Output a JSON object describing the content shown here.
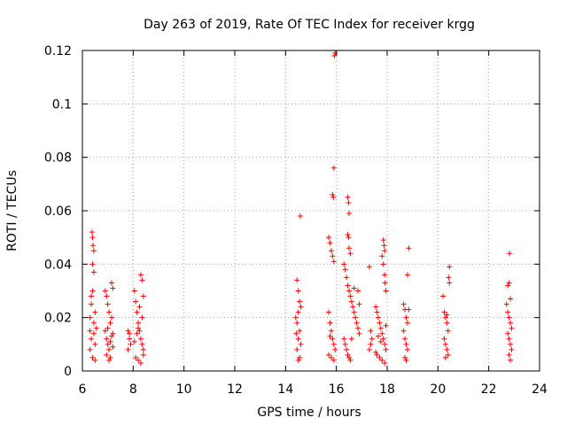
{
  "chart_data": {
    "type": "scatter",
    "title": "Day 263 of 2019, Rate Of TEC Index for receiver krgg",
    "xlabel": "GPS time / hours",
    "ylabel": "ROTI / TECUs",
    "xlim": [
      6,
      24
    ],
    "ylim": [
      0,
      0.12
    ],
    "xticks": [
      6,
      8,
      10,
      12,
      14,
      16,
      18,
      20,
      22,
      24
    ],
    "xtick_labels": [
      "6",
      "8",
      "10",
      "12",
      "14",
      "16",
      "18",
      "20",
      "22",
      "24"
    ],
    "yticks": [
      0,
      0.02,
      0.04,
      0.06,
      0.08,
      0.1,
      0.12
    ],
    "ytick_labels": [
      "0",
      "0.02",
      "0.04",
      "0.06",
      "0.08",
      "0.1",
      "0.12"
    ],
    "grid": true,
    "marker": "+",
    "series": [
      {
        "name": "ROTI",
        "color": "#ff0000",
        "points": [
          [
            6.3,
            0.008
          ],
          [
            6.35,
            0.012
          ],
          [
            6.4,
            0.005
          ],
          [
            6.45,
            0.014
          ],
          [
            6.5,
            0.01
          ],
          [
            6.3,
            0.02
          ],
          [
            6.35,
            0.025
          ],
          [
            6.4,
            0.03
          ],
          [
            6.45,
            0.018
          ],
          [
            6.5,
            0.022
          ],
          [
            6.38,
            0.052
          ],
          [
            6.4,
            0.05
          ],
          [
            6.42,
            0.047
          ],
          [
            6.45,
            0.045
          ],
          [
            6.4,
            0.04
          ],
          [
            6.45,
            0.037
          ],
          [
            6.35,
            0.028
          ],
          [
            6.55,
            0.016
          ],
          [
            6.3,
            0.015
          ],
          [
            6.5,
            0.004
          ],
          [
            6.9,
            0.03
          ],
          [
            6.95,
            0.028
          ],
          [
            7.0,
            0.025
          ],
          [
            7.05,
            0.022
          ],
          [
            7.1,
            0.018
          ],
          [
            7.15,
            0.033
          ],
          [
            7.2,
            0.031
          ],
          [
            6.9,
            0.015
          ],
          [
            6.95,
            0.012
          ],
          [
            7.0,
            0.01
          ],
          [
            7.05,
            0.008
          ],
          [
            7.1,
            0.005
          ],
          [
            7.15,
            0.02
          ],
          [
            7.2,
            0.014
          ],
          [
            7.0,
            0.016
          ],
          [
            7.1,
            0.011
          ],
          [
            6.95,
            0.006
          ],
          [
            7.2,
            0.009
          ],
          [
            7.05,
            0.004
          ],
          [
            7.15,
            0.013
          ],
          [
            7.8,
            0.015
          ],
          [
            7.85,
            0.012
          ],
          [
            7.9,
            0.01
          ],
          [
            7.8,
            0.008
          ],
          [
            7.85,
            0.014
          ],
          [
            8.05,
            0.03
          ],
          [
            8.1,
            0.026
          ],
          [
            8.15,
            0.022
          ],
          [
            8.2,
            0.018
          ],
          [
            8.25,
            0.015
          ],
          [
            8.3,
            0.012
          ],
          [
            8.35,
            0.01
          ],
          [
            8.4,
            0.008
          ],
          [
            8.1,
            0.005
          ],
          [
            8.2,
            0.004
          ],
          [
            8.3,
            0.036
          ],
          [
            8.35,
            0.034
          ],
          [
            8.4,
            0.028
          ],
          [
            8.25,
            0.024
          ],
          [
            8.15,
            0.014
          ],
          [
            8.05,
            0.011
          ],
          [
            8.35,
            0.02
          ],
          [
            8.4,
            0.006
          ],
          [
            8.2,
            0.016
          ],
          [
            8.3,
            0.003
          ],
          [
            14.45,
            0.034
          ],
          [
            14.5,
            0.03
          ],
          [
            14.55,
            0.026
          ],
          [
            14.5,
            0.022
          ],
          [
            14.45,
            0.018
          ],
          [
            14.55,
            0.015
          ],
          [
            14.5,
            0.012
          ],
          [
            14.45,
            0.008
          ],
          [
            14.55,
            0.005
          ],
          [
            14.5,
            0.004
          ],
          [
            14.58,
            0.058
          ],
          [
            14.6,
            0.024
          ],
          [
            14.4,
            0.02
          ],
          [
            14.6,
            0.01
          ],
          [
            14.42,
            0.014
          ],
          [
            15.7,
            0.05
          ],
          [
            15.75,
            0.048
          ],
          [
            15.8,
            0.045
          ],
          [
            15.85,
            0.043
          ],
          [
            15.9,
            0.041
          ],
          [
            15.7,
            0.022
          ],
          [
            15.75,
            0.018
          ],
          [
            15.8,
            0.015
          ],
          [
            15.85,
            0.012
          ],
          [
            15.9,
            0.01
          ],
          [
            15.95,
            0.008
          ],
          [
            15.7,
            0.006
          ],
          [
            15.8,
            0.005
          ],
          [
            15.9,
            0.004
          ],
          [
            15.85,
            0.066
          ],
          [
            15.88,
            0.065
          ],
          [
            15.9,
            0.076
          ],
          [
            15.92,
            0.118
          ],
          [
            15.95,
            0.119
          ],
          [
            15.75,
            0.013
          ],
          [
            16.3,
            0.04
          ],
          [
            16.35,
            0.038
          ],
          [
            16.4,
            0.035
          ],
          [
            16.45,
            0.032
          ],
          [
            16.5,
            0.03
          ],
          [
            16.55,
            0.028
          ],
          [
            16.6,
            0.026
          ],
          [
            16.65,
            0.024
          ],
          [
            16.7,
            0.022
          ],
          [
            16.75,
            0.02
          ],
          [
            16.8,
            0.018
          ],
          [
            16.85,
            0.016
          ],
          [
            16.9,
            0.014
          ],
          [
            16.3,
            0.012
          ],
          [
            16.35,
            0.01
          ],
          [
            16.4,
            0.008
          ],
          [
            16.45,
            0.006
          ],
          [
            16.5,
            0.005
          ],
          [
            16.55,
            0.004
          ],
          [
            16.6,
            0.012
          ],
          [
            16.45,
            0.065
          ],
          [
            16.48,
            0.063
          ],
          [
            16.5,
            0.059
          ],
          [
            16.45,
            0.051
          ],
          [
            16.48,
            0.05
          ],
          [
            16.5,
            0.046
          ],
          [
            16.55,
            0.044
          ],
          [
            16.7,
            0.031
          ],
          [
            16.85,
            0.03
          ],
          [
            16.9,
            0.025
          ],
          [
            17.3,
            0.039
          ],
          [
            17.35,
            0.015
          ],
          [
            17.4,
            0.012
          ],
          [
            17.35,
            0.01
          ],
          [
            17.3,
            0.008
          ],
          [
            17.55,
            0.024
          ],
          [
            17.6,
            0.022
          ],
          [
            17.65,
            0.02
          ],
          [
            17.7,
            0.018
          ],
          [
            17.75,
            0.016
          ],
          [
            17.8,
            0.014
          ],
          [
            17.85,
            0.012
          ],
          [
            17.9,
            0.01
          ],
          [
            17.95,
            0.008
          ],
          [
            17.6,
            0.006
          ],
          [
            17.7,
            0.005
          ],
          [
            17.8,
            0.004
          ],
          [
            17.9,
            0.003
          ],
          [
            17.85,
            0.049
          ],
          [
            17.88,
            0.047
          ],
          [
            17.9,
            0.045
          ],
          [
            17.8,
            0.043
          ],
          [
            17.85,
            0.04
          ],
          [
            17.9,
            0.036
          ],
          [
            17.92,
            0.033
          ],
          [
            17.95,
            0.03
          ],
          [
            17.75,
            0.011
          ],
          [
            17.65,
            0.013
          ],
          [
            17.55,
            0.007
          ],
          [
            17.95,
            0.017
          ],
          [
            18.65,
            0.025
          ],
          [
            18.7,
            0.023
          ],
          [
            18.75,
            0.02
          ],
          [
            18.8,
            0.018
          ],
          [
            18.65,
            0.015
          ],
          [
            18.7,
            0.012
          ],
          [
            18.75,
            0.01
          ],
          [
            18.8,
            0.008
          ],
          [
            18.7,
            0.005
          ],
          [
            18.75,
            0.004
          ],
          [
            18.85,
            0.046
          ],
          [
            18.8,
            0.036
          ],
          [
            18.85,
            0.023
          ],
          [
            20.2,
            0.028
          ],
          [
            20.25,
            0.022
          ],
          [
            20.3,
            0.02
          ],
          [
            20.35,
            0.018
          ],
          [
            20.4,
            0.015
          ],
          [
            20.25,
            0.012
          ],
          [
            20.3,
            0.01
          ],
          [
            20.35,
            0.008
          ],
          [
            20.4,
            0.006
          ],
          [
            20.3,
            0.005
          ],
          [
            20.45,
            0.039
          ],
          [
            20.42,
            0.035
          ],
          [
            20.45,
            0.033
          ],
          [
            20.35,
            0.021
          ],
          [
            22.7,
            0.025
          ],
          [
            22.75,
            0.022
          ],
          [
            22.8,
            0.02
          ],
          [
            22.85,
            0.018
          ],
          [
            22.9,
            0.016
          ],
          [
            22.75,
            0.014
          ],
          [
            22.8,
            0.012
          ],
          [
            22.85,
            0.01
          ],
          [
            22.9,
            0.008
          ],
          [
            22.8,
            0.006
          ],
          [
            22.85,
            0.004
          ],
          [
            22.82,
            0.044
          ],
          [
            22.8,
            0.033
          ],
          [
            22.75,
            0.032
          ],
          [
            22.85,
            0.027
          ]
        ]
      }
    ]
  }
}
